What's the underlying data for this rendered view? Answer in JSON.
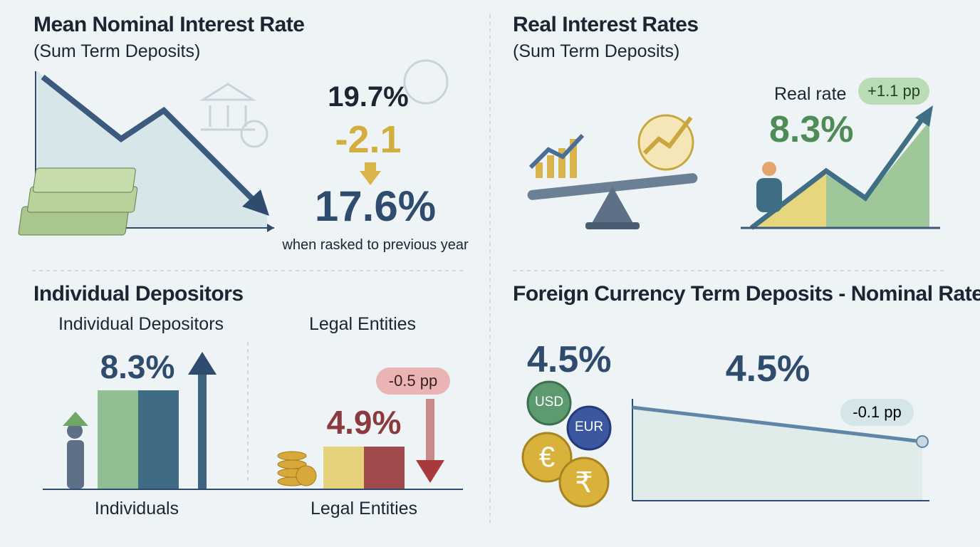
{
  "panels": [
    {
      "title": "Mean Nominal Interest Rate",
      "subtitle": "(Sum Term Deposits)",
      "previous": "19.7%",
      "change": "-2.1",
      "current": "17.6%",
      "note": "when rasked to previous year"
    },
    {
      "title": "Real Interest Rates",
      "subtitle": "(Sum Term Deposits)",
      "label": "Real rate",
      "change": "+1.1 pp",
      "value": "8.3%"
    },
    {
      "title": "Individual Depositors",
      "groups": [
        {
          "heading": "Individual Depositors",
          "value": "8.3%",
          "axis_label": "Individuals"
        },
        {
          "heading": "Legal Entities",
          "value": "4.9%",
          "change": "-0.5 pp",
          "axis_label": "Legal Entities"
        }
      ]
    },
    {
      "title": "Foreign Currency Term Deposits - Nominal Rate",
      "left_value": "4.5%",
      "value": "4.5%",
      "change": "-0.1 pp",
      "currencies": [
        "USD",
        "EUR",
        "€",
        "₹"
      ]
    }
  ]
}
